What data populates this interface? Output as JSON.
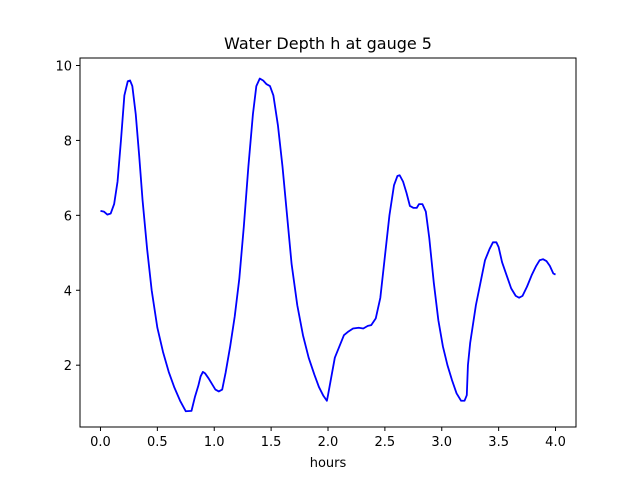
{
  "chart_data": {
    "type": "line",
    "title": "Water Depth h at gauge 5",
    "xlabel": "hours",
    "ylabel": "",
    "xlim": [
      -0.18,
      4.18
    ],
    "ylim": [
      0.35,
      10.2
    ],
    "xticks": [
      0.0,
      0.5,
      1.0,
      1.5,
      2.0,
      2.5,
      3.0,
      3.5,
      4.0
    ],
    "xtick_labels": [
      "0.0",
      "0.5",
      "1.0",
      "1.5",
      "2.0",
      "2.5",
      "3.0",
      "3.5",
      "4.0"
    ],
    "yticks": [
      2,
      4,
      6,
      8,
      10
    ],
    "ytick_labels": [
      "2",
      "4",
      "6",
      "8",
      "10"
    ],
    "grid": false,
    "series": [
      {
        "color": "#0000ff",
        "x": [
          0.0,
          0.03,
          0.06,
          0.09,
          0.12,
          0.15,
          0.18,
          0.21,
          0.24,
          0.26,
          0.28,
          0.31,
          0.34,
          0.37,
          0.41,
          0.45,
          0.5,
          0.55,
          0.6,
          0.65,
          0.7,
          0.75,
          0.8,
          0.83,
          0.84,
          0.86,
          0.88,
          0.9,
          0.92,
          0.95,
          0.98,
          1.01,
          1.04,
          1.07,
          1.1,
          1.14,
          1.18,
          1.22,
          1.26,
          1.3,
          1.34,
          1.37,
          1.4,
          1.43,
          1.46,
          1.49,
          1.52,
          1.56,
          1.6,
          1.64,
          1.68,
          1.73,
          1.78,
          1.83,
          1.88,
          1.92,
          1.96,
          1.99,
          2.0,
          2.03,
          2.06,
          2.1,
          2.14,
          2.18,
          2.22,
          2.27,
          2.31,
          2.35,
          2.38,
          2.42,
          2.46,
          2.5,
          2.54,
          2.58,
          2.61,
          2.63,
          2.66,
          2.69,
          2.72,
          2.75,
          2.78,
          2.8,
          2.83,
          2.86,
          2.89,
          2.93,
          2.97,
          3.01,
          3.05,
          3.09,
          3.13,
          3.17,
          3.2,
          3.22,
          3.23,
          3.25,
          3.27,
          3.3,
          3.34,
          3.38,
          3.42,
          3.45,
          3.48,
          3.5,
          3.53,
          3.57,
          3.61,
          3.65,
          3.68,
          3.71,
          3.75,
          3.79,
          3.83,
          3.86,
          3.89,
          3.92,
          3.95,
          3.98,
          4.0
        ],
        "y": [
          6.12,
          6.1,
          6.02,
          6.05,
          6.3,
          6.9,
          8.0,
          9.2,
          9.58,
          9.6,
          9.45,
          8.7,
          7.6,
          6.4,
          5.1,
          4.0,
          3.0,
          2.35,
          1.82,
          1.4,
          1.05,
          0.77,
          0.78,
          1.15,
          1.25,
          1.45,
          1.7,
          1.82,
          1.78,
          1.65,
          1.5,
          1.35,
          1.3,
          1.35,
          1.8,
          2.5,
          3.3,
          4.3,
          5.7,
          7.3,
          8.7,
          9.45,
          9.65,
          9.6,
          9.5,
          9.45,
          9.2,
          8.4,
          7.3,
          6.0,
          4.7,
          3.6,
          2.8,
          2.2,
          1.75,
          1.42,
          1.18,
          1.05,
          1.2,
          1.7,
          2.2,
          2.5,
          2.8,
          2.9,
          2.98,
          3.0,
          2.98,
          3.05,
          3.07,
          3.25,
          3.8,
          4.9,
          6.0,
          6.8,
          7.05,
          7.07,
          6.9,
          6.6,
          6.25,
          6.2,
          6.2,
          6.3,
          6.3,
          6.1,
          5.4,
          4.2,
          3.2,
          2.5,
          2.0,
          1.6,
          1.25,
          1.05,
          1.05,
          1.2,
          2.0,
          2.6,
          3.0,
          3.6,
          4.2,
          4.8,
          5.1,
          5.28,
          5.28,
          5.15,
          4.75,
          4.4,
          4.05,
          3.85,
          3.8,
          3.85,
          4.1,
          4.4,
          4.65,
          4.8,
          4.83,
          4.78,
          4.65,
          4.45,
          4.42
        ]
      }
    ]
  }
}
